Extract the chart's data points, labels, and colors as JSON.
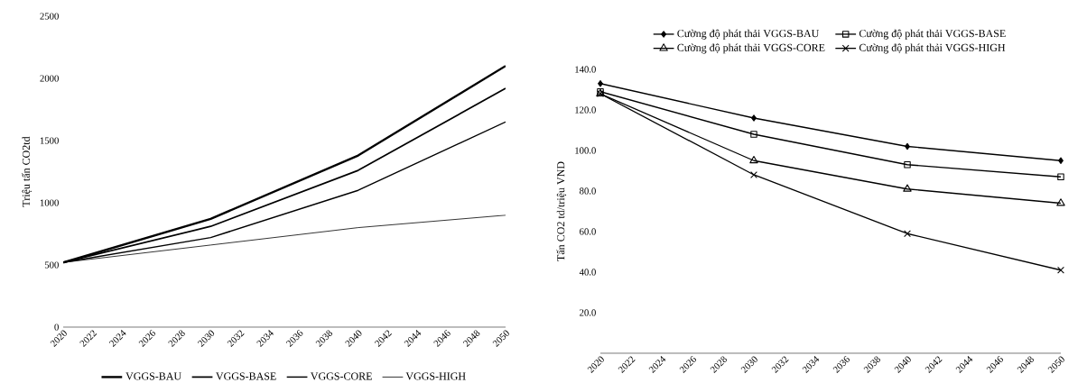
{
  "chart_data": [
    {
      "type": "line",
      "ylabel": "Triệu tấn CO2td",
      "x": [
        2020,
        2030,
        2040,
        2050
      ],
      "xlim": [
        2020,
        2050
      ],
      "xticks": [
        2020,
        2022,
        2024,
        2026,
        2028,
        2030,
        2032,
        2034,
        2036,
        2038,
        2040,
        2042,
        2044,
        2046,
        2048,
        2050
      ],
      "ylim": [
        0,
        2500
      ],
      "yticks": [
        0,
        500,
        1000,
        1500,
        2000,
        2500
      ],
      "grid": false,
      "legend": "bottom",
      "marker": "none",
      "series": [
        {
          "name": "VGGS-BAU",
          "color": "#000000",
          "values": [
            520,
            870,
            1380,
            2100
          ]
        },
        {
          "name": "VGGS-BASE",
          "color": "#000000",
          "values": [
            520,
            810,
            1260,
            1920
          ]
        },
        {
          "name": "VGGS-CORE",
          "color": "#000000",
          "values": [
            520,
            720,
            1100,
            1650
          ]
        },
        {
          "name": "VGGS-HIGH",
          "color": "#000000",
          "values": [
            520,
            660,
            800,
            900
          ]
        }
      ]
    },
    {
      "type": "line",
      "ylabel": "Tấn CO2 td/triệu VND",
      "x": [
        2020,
        2030,
        2040,
        2050
      ],
      "xlim": [
        2020,
        2050
      ],
      "xticks": [
        2020,
        2022,
        2024,
        2026,
        2028,
        2030,
        2032,
        2034,
        2036,
        2038,
        2040,
        2042,
        2044,
        2046,
        2048,
        2050
      ],
      "ylim": [
        0,
        140
      ],
      "yticks": [
        {
          "value": 20,
          "label": "20.0"
        },
        {
          "value": 40,
          "label": "40.0"
        },
        {
          "value": 60,
          "label": "60.0"
        },
        {
          "value": 80,
          "label": "80.0"
        },
        {
          "value": 100,
          "label": "100.0"
        },
        {
          "value": 120,
          "label": "120.0"
        },
        {
          "value": 140,
          "label": "140.0"
        }
      ],
      "grid": false,
      "legend": "top",
      "series": [
        {
          "name": "Cường độ phát thải VGGS-BAU",
          "color": "#000000",
          "marker": "diamond",
          "values": [
            133,
            116,
            102,
            95
          ]
        },
        {
          "name": "Cường độ phát thải VGGS-BASE",
          "color": "#000000",
          "marker": "square",
          "values": [
            129,
            108,
            93,
            87
          ]
        },
        {
          "name": "Cường độ phát thải VGGS-CORE",
          "color": "#000000",
          "marker": "triangle",
          "values": [
            128,
            95,
            81,
            74
          ]
        },
        {
          "name": "Cường độ phát thải VGGS-HIGH",
          "color": "#000000",
          "marker": "cross",
          "values": [
            128,
            88,
            59,
            41
          ]
        }
      ]
    }
  ]
}
